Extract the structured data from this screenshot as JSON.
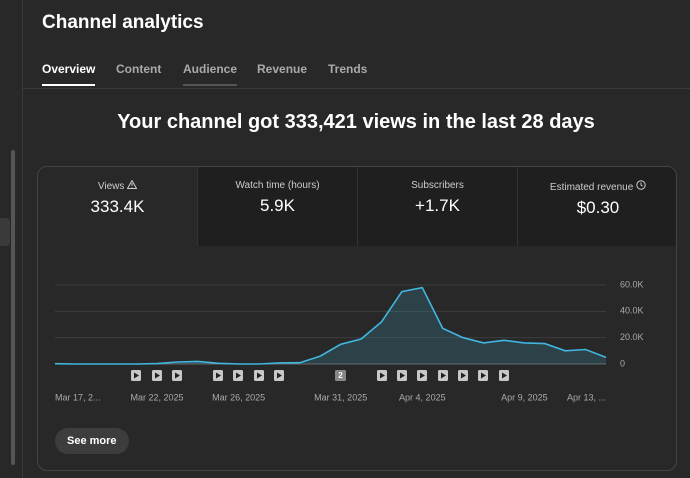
{
  "header": {
    "title": "Channel analytics"
  },
  "tabs": [
    "Overview",
    "Content",
    "Audience",
    "Revenue",
    "Trends"
  ],
  "headline": "Your channel got 333,421 views in the last 28 days",
  "metrics": [
    {
      "label": "Views",
      "value": "333.4K"
    },
    {
      "label": "Watch time (hours)",
      "value": "5.9K"
    },
    {
      "label": "Subscribers",
      "value": "+1.7K"
    },
    {
      "label": "Estimated revenue",
      "value": "$0.30"
    }
  ],
  "chart_data": {
    "type": "line",
    "categories": [
      "Mar 17, 2...",
      null,
      null,
      null,
      null,
      "Mar 22, 2025",
      null,
      null,
      null,
      "Mar 26, 2025",
      null,
      null,
      null,
      null,
      "Mar 31, 2025",
      null,
      null,
      null,
      "Apr 4, 2025",
      null,
      null,
      null,
      null,
      "Apr 9, 2025",
      null,
      null,
      null,
      "Apr 13, ..."
    ],
    "values": [
      200,
      0,
      0,
      0,
      0,
      300,
      1500,
      2000,
      500,
      0,
      0,
      800,
      1000,
      6000,
      15000,
      19000,
      32000,
      55000,
      58000,
      27000,
      20000,
      16000,
      18000,
      16000,
      15500,
      10000,
      11000,
      5000
    ],
    "color": "#41b6e0",
    "ylim": [
      0,
      60000
    ],
    "yticks": [
      0,
      {
        "value": 20000,
        "label": "20.0K"
      },
      {
        "value": 40000,
        "label": "40.0K"
      },
      {
        "value": 60000,
        "label": "60.0K"
      }
    ],
    "grid": true,
    "marker_label": "2"
  },
  "see_more": "See more"
}
